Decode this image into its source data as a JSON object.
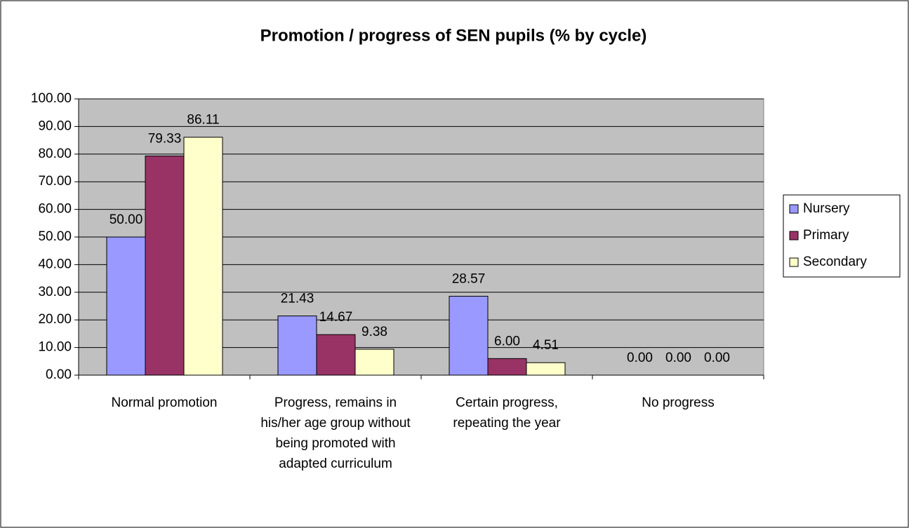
{
  "chart_data": {
    "type": "bar",
    "title": "Promotion / progress of SEN pupils (% by cycle)",
    "categories": [
      "Normal promotion",
      "Progress, remains in his/her age group without being promoted with adapted curriculum",
      "Certain progress, repeating the year",
      "No progress"
    ],
    "series": [
      {
        "name": "Nursery",
        "color": "#9999ff",
        "values": [
          50,
          21.43,
          28.57,
          0
        ],
        "value_labels": [
          "50.00",
          "21.43",
          "28.57",
          "0.00"
        ]
      },
      {
        "name": "Primary",
        "color": "#993366",
        "values": [
          79.33,
          14.67,
          6,
          0
        ],
        "value_labels": [
          "79.33",
          "14.67",
          "6.00",
          "0.00"
        ]
      },
      {
        "name": "Secondary",
        "color": "#ffffcc",
        "values": [
          86.11,
          9.38,
          4.51,
          0
        ],
        "value_labels": [
          "86.11",
          "9.38",
          "4.51",
          "0.00"
        ]
      }
    ],
    "ylim": [
      0,
      100
    ],
    "yticks": [
      {
        "value": 0,
        "label": "0.00"
      },
      {
        "value": 10,
        "label": "10.00"
      },
      {
        "value": 20,
        "label": "20.00"
      },
      {
        "value": 30,
        "label": "30.00"
      },
      {
        "value": 40,
        "label": "40.00"
      },
      {
        "value": 50,
        "label": "50.00"
      },
      {
        "value": 60,
        "label": "60.00"
      },
      {
        "value": 70,
        "label": "70.00"
      },
      {
        "value": 80,
        "label": "80.00"
      },
      {
        "value": 90,
        "label": "90.00"
      },
      {
        "value": 100,
        "label": "100.00"
      }
    ],
    "grid": true,
    "legend": "right",
    "plot_background": "#c0c0c0"
  }
}
